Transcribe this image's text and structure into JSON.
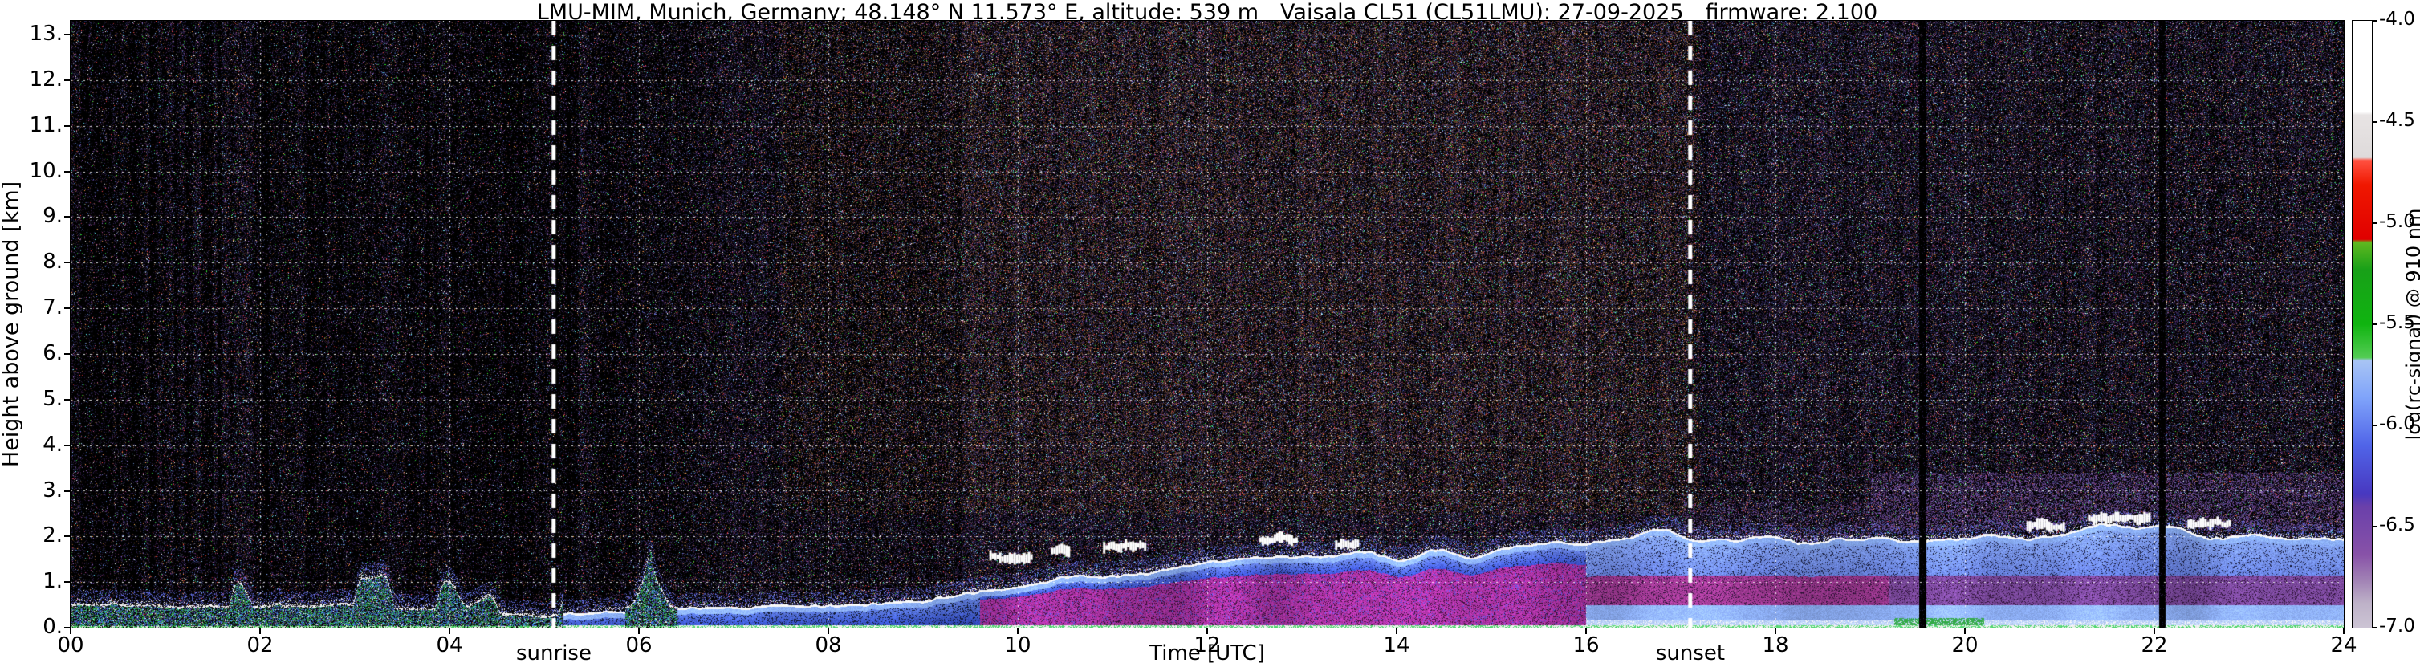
{
  "chart_data": {
    "type": "heatmap",
    "title": "LMU-MIM, Munich, Germany; 48.148° N 11.573° E, altitude: 539 m Vaisala CL51 (CL51LMU): 27-09-2025 firmware: 2.100",
    "xlabel": "Time [UTC]",
    "ylabel": "Height above ground [km]",
    "xlim": [
      0,
      24
    ],
    "ylim": [
      0,
      13.3
    ],
    "grid": true,
    "x_ticks": [
      "00",
      "02",
      "04",
      "06",
      "08",
      "10",
      "12",
      "14",
      "16",
      "18",
      "20",
      "22",
      "24"
    ],
    "x_tick_values": [
      0,
      2,
      4,
      6,
      8,
      10,
      12,
      14,
      16,
      18,
      20,
      22,
      24
    ],
    "y_ticks": [
      "0.",
      "1.",
      "2.",
      "3.",
      "4.",
      "5.",
      "6.",
      "7.",
      "8.",
      "9.",
      "10.",
      "11.",
      "12.",
      "13."
    ],
    "y_tick_values": [
      0,
      1,
      2,
      3,
      4,
      5,
      6,
      7,
      8,
      9,
      10,
      11,
      12,
      13
    ],
    "colorbar": {
      "label": "log(rc-signal) @ 910 nm",
      "ticks": [
        "-4.0",
        "-4.5",
        "-5.0",
        "-5.5",
        "-6.0",
        "-6.5",
        "-7.0"
      ],
      "tick_values": [
        -4.0,
        -4.5,
        -5.0,
        -5.5,
        -6.0,
        -6.5,
        -7.0
      ],
      "range": [
        -4.0,
        -7.0
      ],
      "stops": [
        {
          "p": 0.0,
          "c": "#ffffff"
        },
        {
          "p": 0.15,
          "c": "#ffffff"
        },
        {
          "p": 0.155,
          "c": "#e8e4e4"
        },
        {
          "p": 0.225,
          "c": "#dedada"
        },
        {
          "p": 0.23,
          "c": "#ff5040"
        },
        {
          "p": 0.27,
          "c": "#f01800"
        },
        {
          "p": 0.36,
          "c": "#e00000"
        },
        {
          "p": 0.365,
          "c": "#60b820"
        },
        {
          "p": 0.41,
          "c": "#18a018"
        },
        {
          "p": 0.5,
          "c": "#10b410"
        },
        {
          "p": 0.555,
          "c": "#54cc54"
        },
        {
          "p": 0.56,
          "c": "#a8c4f4"
        },
        {
          "p": 0.62,
          "c": "#80a4fa"
        },
        {
          "p": 0.7,
          "c": "#5064e8"
        },
        {
          "p": 0.78,
          "c": "#4838c0"
        },
        {
          "p": 0.8,
          "c": "#6a40aa"
        },
        {
          "p": 0.88,
          "c": "#8852a8"
        },
        {
          "p": 0.92,
          "c": "#a080b4"
        },
        {
          "p": 0.96,
          "c": "#beb2c8"
        },
        {
          "p": 1.0,
          "c": "#ccc4d4"
        }
      ]
    },
    "annotations": [
      {
        "label": "sunrise",
        "x": 5.1,
        "type": "dashed-vline",
        "color": "#ffffff"
      },
      {
        "label": "sunset",
        "x": 17.1,
        "type": "dashed-vline",
        "color": "#ffffff"
      }
    ],
    "series": [
      {
        "name": "aerosol_layer_top_km",
        "x": [
          0,
          1,
          2,
          3,
          4,
          5,
          6,
          7,
          8,
          9,
          10,
          11,
          12,
          13,
          14,
          15,
          16,
          17,
          18,
          19,
          20,
          21,
          22,
          23,
          24
        ],
        "values": [
          0.55,
          0.5,
          0.5,
          0.55,
          0.4,
          0.3,
          0.4,
          0.45,
          0.5,
          0.6,
          0.95,
          1.2,
          1.5,
          1.6,
          1.6,
          1.7,
          1.9,
          2.1,
          1.95,
          1.9,
          2.0,
          2.1,
          2.2,
          2.05,
          2.0
        ]
      }
    ],
    "features": {
      "clouds": [
        {
          "t0": 9.7,
          "t1": 10.15,
          "h": 1.55
        },
        {
          "t0": 10.35,
          "t1": 10.55,
          "h": 1.7
        },
        {
          "t0": 10.9,
          "t1": 11.35,
          "h": 1.78
        },
        {
          "t0": 12.55,
          "t1": 12.95,
          "h": 1.95
        },
        {
          "t0": 13.35,
          "t1": 13.6,
          "h": 1.85
        },
        {
          "t0": 20.65,
          "t1": 21.05,
          "h": 2.25
        },
        {
          "t0": 21.3,
          "t1": 21.95,
          "h": 2.4
        },
        {
          "t0": 22.35,
          "t1": 22.8,
          "h": 2.3
        }
      ],
      "dark_columns": [
        19.55,
        22.08
      ],
      "burst": {
        "t0": 5.85,
        "t1": 6.4,
        "top": 1.6
      },
      "magenta_zone": {
        "t0": 9.6,
        "t1": 16.0,
        "top": 1.45
      },
      "haze": {
        "t0": 19.0,
        "t1": 24.0,
        "top": 3.4
      }
    }
  }
}
